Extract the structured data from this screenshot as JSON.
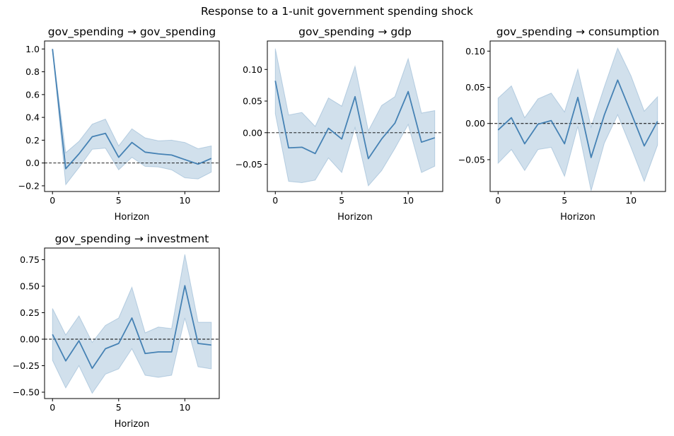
{
  "figure": {
    "suptitle": "Response to a 1-unit government spending shock"
  },
  "style": {
    "line_color": "#4682b4",
    "band_color": "#4682b4",
    "band_opacity": 0.25,
    "zero_line_color": "#000000"
  },
  "chart_data": [
    {
      "type": "line",
      "title": "gov_spending → gov_spending",
      "xlabel": "Horizon",
      "ylabel": "",
      "xlim": [
        -0.6,
        12.6
      ],
      "ylim": [
        -0.25,
        1.07
      ],
      "xticks": [
        0,
        5,
        10
      ],
      "xtick_labels": [
        "0",
        "5",
        "10"
      ],
      "yticks": [
        -0.2,
        0.0,
        0.2,
        0.4,
        0.6,
        0.8,
        1.0
      ],
      "ytick_labels": [
        "−0.2",
        "0.0",
        "0.2",
        "0.4",
        "0.6",
        "0.8",
        "1.0"
      ],
      "zero_line": true,
      "x": [
        0,
        1,
        2,
        3,
        4,
        5,
        6,
        7,
        8,
        9,
        10,
        11,
        12
      ],
      "series": [
        {
          "values": [
            1.0,
            -0.05,
            0.08,
            0.23,
            0.26,
            0.05,
            0.18,
            0.095,
            0.08,
            0.07,
            0.03,
            -0.01,
            0.04
          ],
          "lower": [
            1.0,
            -0.19,
            -0.04,
            0.12,
            0.13,
            -0.06,
            0.05,
            -0.03,
            -0.035,
            -0.06,
            -0.13,
            -0.14,
            -0.08
          ],
          "upper": [
            1.0,
            0.09,
            0.19,
            0.34,
            0.385,
            0.15,
            0.3,
            0.22,
            0.195,
            0.2,
            0.18,
            0.125,
            0.15
          ]
        }
      ]
    },
    {
      "type": "line",
      "title": "gov_spending → gdp",
      "xlabel": "Horizon",
      "ylabel": "",
      "xlim": [
        -0.6,
        12.6
      ],
      "ylim": [
        -0.093,
        0.145
      ],
      "xticks": [
        0,
        5,
        10
      ],
      "xtick_labels": [
        "0",
        "5",
        "10"
      ],
      "yticks": [
        -0.05,
        0.0,
        0.05,
        0.1
      ],
      "ytick_labels": [
        "−0.05",
        "0.00",
        "0.05",
        "0.10"
      ],
      "zero_line": true,
      "x": [
        0,
        1,
        2,
        3,
        4,
        5,
        6,
        7,
        8,
        9,
        10,
        11,
        12
      ],
      "series": [
        {
          "values": [
            0.082,
            -0.024,
            -0.023,
            -0.033,
            0.007,
            -0.01,
            0.057,
            -0.041,
            -0.01,
            0.015,
            0.065,
            -0.015,
            -0.008
          ],
          "lower": [
            0.03,
            -0.077,
            -0.079,
            -0.075,
            -0.04,
            -0.063,
            0.008,
            -0.084,
            -0.06,
            -0.025,
            0.013,
            -0.063,
            -0.053
          ],
          "upper": [
            0.133,
            0.028,
            0.032,
            0.01,
            0.055,
            0.042,
            0.105,
            0.003,
            0.043,
            0.057,
            0.117,
            0.031,
            0.035
          ]
        }
      ]
    },
    {
      "type": "line",
      "title": "gov_spending → consumption",
      "xlabel": "Horizon",
      "ylabel": "",
      "xlim": [
        -0.6,
        12.6
      ],
      "ylim": [
        -0.094,
        0.114
      ],
      "xticks": [
        0,
        5,
        10
      ],
      "xtick_labels": [
        "0",
        "5",
        "10"
      ],
      "yticks": [
        -0.05,
        0.0,
        0.05,
        0.1
      ],
      "ytick_labels": [
        "−0.05",
        "0.00",
        "0.05",
        "0.10"
      ],
      "zero_line": true,
      "x": [
        0,
        1,
        2,
        3,
        4,
        5,
        6,
        7,
        8,
        9,
        10,
        11,
        12
      ],
      "series": [
        {
          "values": [
            -0.009,
            0.008,
            -0.028,
            -0.001,
            0.004,
            -0.028,
            0.036,
            -0.047,
            0.012,
            0.06,
            0.015,
            -0.031,
            0.003
          ],
          "lower": [
            -0.055,
            -0.036,
            -0.065,
            -0.036,
            -0.033,
            -0.073,
            -0.004,
            -0.093,
            -0.027,
            0.012,
            -0.033,
            -0.08,
            -0.03
          ],
          "upper": [
            0.035,
            0.052,
            0.008,
            0.034,
            0.042,
            0.016,
            0.075,
            -0.005,
            0.051,
            0.104,
            0.066,
            0.017,
            0.037
          ]
        }
      ]
    },
    {
      "type": "line",
      "title": "gov_spending → investment",
      "xlabel": "Horizon",
      "ylabel": "",
      "xlim": [
        -0.6,
        12.6
      ],
      "ylim": [
        -0.56,
        0.86
      ],
      "xticks": [
        0,
        5,
        10
      ],
      "xtick_labels": [
        "0",
        "5",
        "10"
      ],
      "yticks": [
        -0.5,
        -0.25,
        0.0,
        0.25,
        0.5,
        0.75
      ],
      "ytick_labels": [
        "−0.50",
        "−0.25",
        "0.00",
        "0.25",
        "0.50",
        "0.75"
      ],
      "zero_line": true,
      "x": [
        0,
        1,
        2,
        3,
        4,
        5,
        6,
        7,
        8,
        9,
        10,
        11,
        12
      ],
      "series": [
        {
          "values": [
            0.045,
            -0.205,
            -0.015,
            -0.275,
            -0.09,
            -0.04,
            0.2,
            -0.135,
            -0.12,
            -0.12,
            0.505,
            -0.04,
            -0.055
          ],
          "lower": [
            -0.2,
            -0.46,
            -0.25,
            -0.51,
            -0.33,
            -0.28,
            -0.09,
            -0.34,
            -0.36,
            -0.34,
            0.2,
            -0.26,
            -0.28
          ],
          "upper": [
            0.29,
            0.04,
            0.22,
            -0.03,
            0.13,
            0.2,
            0.49,
            0.06,
            0.115,
            0.1,
            0.8,
            0.16,
            0.16
          ]
        }
      ]
    }
  ]
}
